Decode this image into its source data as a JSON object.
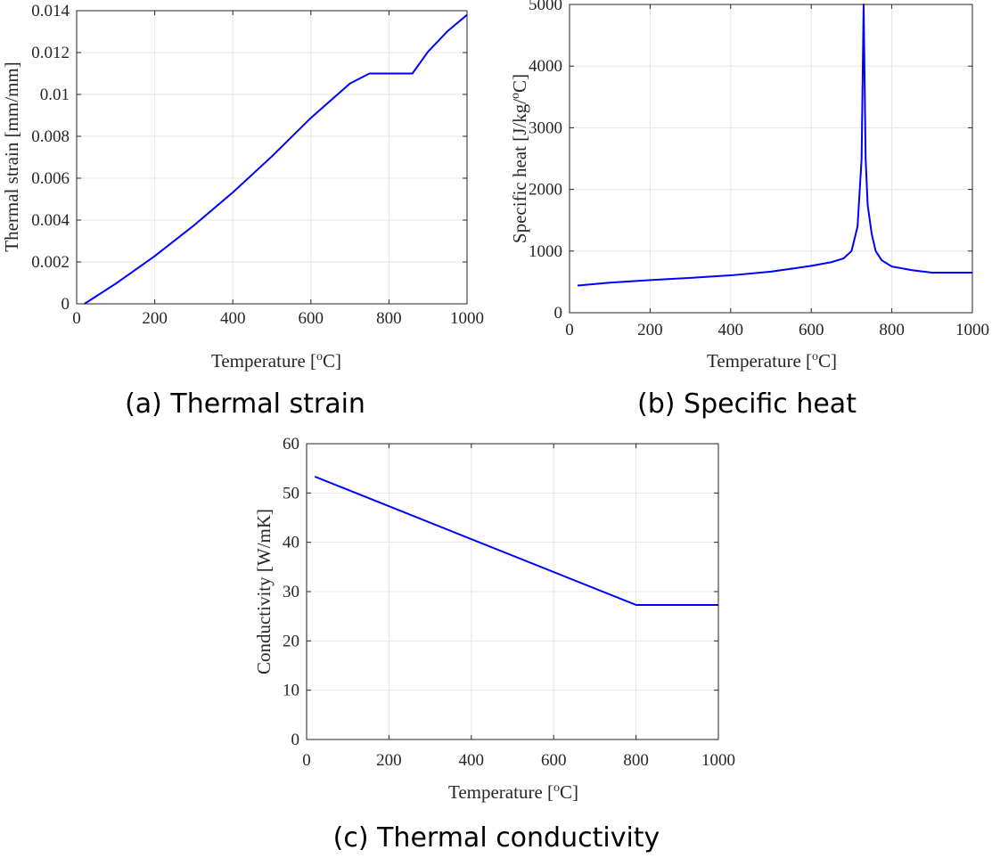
{
  "chart_data": [
    {
      "id": "a",
      "type": "line",
      "caption": "(a) Thermal strain",
      "xlabel_main": "Temperature  [",
      "xlabel_sup": "o",
      "xlabel_end": "C]",
      "ylabel_main": "Thermal strain  [mm/mm]",
      "ylabel_sup": "",
      "ylabel_end": "",
      "xlim": [
        0,
        1000
      ],
      "ylim": [
        0,
        0.014
      ],
      "xticks": [
        0,
        200,
        400,
        600,
        800,
        1000
      ],
      "xtick_labels": [
        "0",
        "200",
        "400",
        "600",
        "800",
        "1000"
      ],
      "yticks": [
        0,
        0.002,
        0.004,
        0.006,
        0.008,
        0.01,
        0.012,
        0.014
      ],
      "ytick_labels": [
        "0",
        "0.002",
        "0.004",
        "0.006",
        "0.008",
        "0.01",
        "0.012",
        "0.014"
      ],
      "grid": true,
      "color": "#0000ff",
      "series": [
        {
          "name": "Thermal strain",
          "x": [
            20,
            100,
            200,
            300,
            400,
            500,
            600,
            700,
            750,
            860,
            900,
            950,
            1000
          ],
          "y": [
            0,
            0.00096,
            0.00228,
            0.00374,
            0.00532,
            0.00704,
            0.00888,
            0.01052,
            0.011,
            0.011,
            0.01204,
            0.01302,
            0.0138
          ]
        }
      ]
    },
    {
      "id": "b",
      "type": "line",
      "caption": "(b) Specific heat",
      "xlabel_main": "Temperature  [",
      "xlabel_sup": "o",
      "xlabel_end": "C]",
      "ylabel_main": "Specific heat  [J/kg/",
      "ylabel_sup": "o",
      "ylabel_end": "C]",
      "xlim": [
        0,
        1000
      ],
      "ylim": [
        0,
        5000
      ],
      "xticks": [
        0,
        200,
        400,
        600,
        800,
        1000
      ],
      "xtick_labels": [
        "0",
        "200",
        "400",
        "600",
        "800",
        "1000"
      ],
      "yticks": [
        0,
        1000,
        2000,
        3000,
        4000,
        5000
      ],
      "ytick_labels": [
        "0",
        "1000",
        "2000",
        "3000",
        "4000",
        "5000"
      ],
      "grid": true,
      "color": "#0000ff",
      "series": [
        {
          "name": "Specific heat",
          "x": [
            20,
            100,
            200,
            300,
            400,
            500,
            600,
            650,
            680,
            700,
            715,
            725,
            730,
            735,
            740,
            750,
            760,
            775,
            800,
            850,
            900,
            1000
          ],
          "y": [
            440,
            488,
            530,
            565,
            606,
            666,
            760,
            820,
            880,
            1000,
            1400,
            2500,
            5000,
            2500,
            1750,
            1280,
            1000,
            850,
            750,
            690,
            650,
            650
          ]
        }
      ]
    },
    {
      "id": "c",
      "type": "line",
      "caption": "(c) Thermal conductivity",
      "xlabel_main": "Temperature  [",
      "xlabel_sup": "o",
      "xlabel_end": "C]",
      "ylabel_main": "Conductivity  [W/mK]",
      "ylabel_sup": "",
      "ylabel_end": "",
      "xlim": [
        0,
        1000
      ],
      "ylim": [
        0,
        60
      ],
      "xticks": [
        0,
        200,
        400,
        600,
        800,
        1000
      ],
      "xtick_labels": [
        "0",
        "200",
        "400",
        "600",
        "800",
        "1000"
      ],
      "yticks": [
        0,
        10,
        20,
        30,
        40,
        50,
        60
      ],
      "ytick_labels": [
        "0",
        "10",
        "20",
        "30",
        "40",
        "50",
        "60"
      ],
      "grid": true,
      "color": "#0000ff",
      "series": [
        {
          "name": "Thermal conductivity",
          "x": [
            20,
            800,
            1000
          ],
          "y": [
            53.33,
            27.3,
            27.3
          ]
        }
      ]
    }
  ]
}
